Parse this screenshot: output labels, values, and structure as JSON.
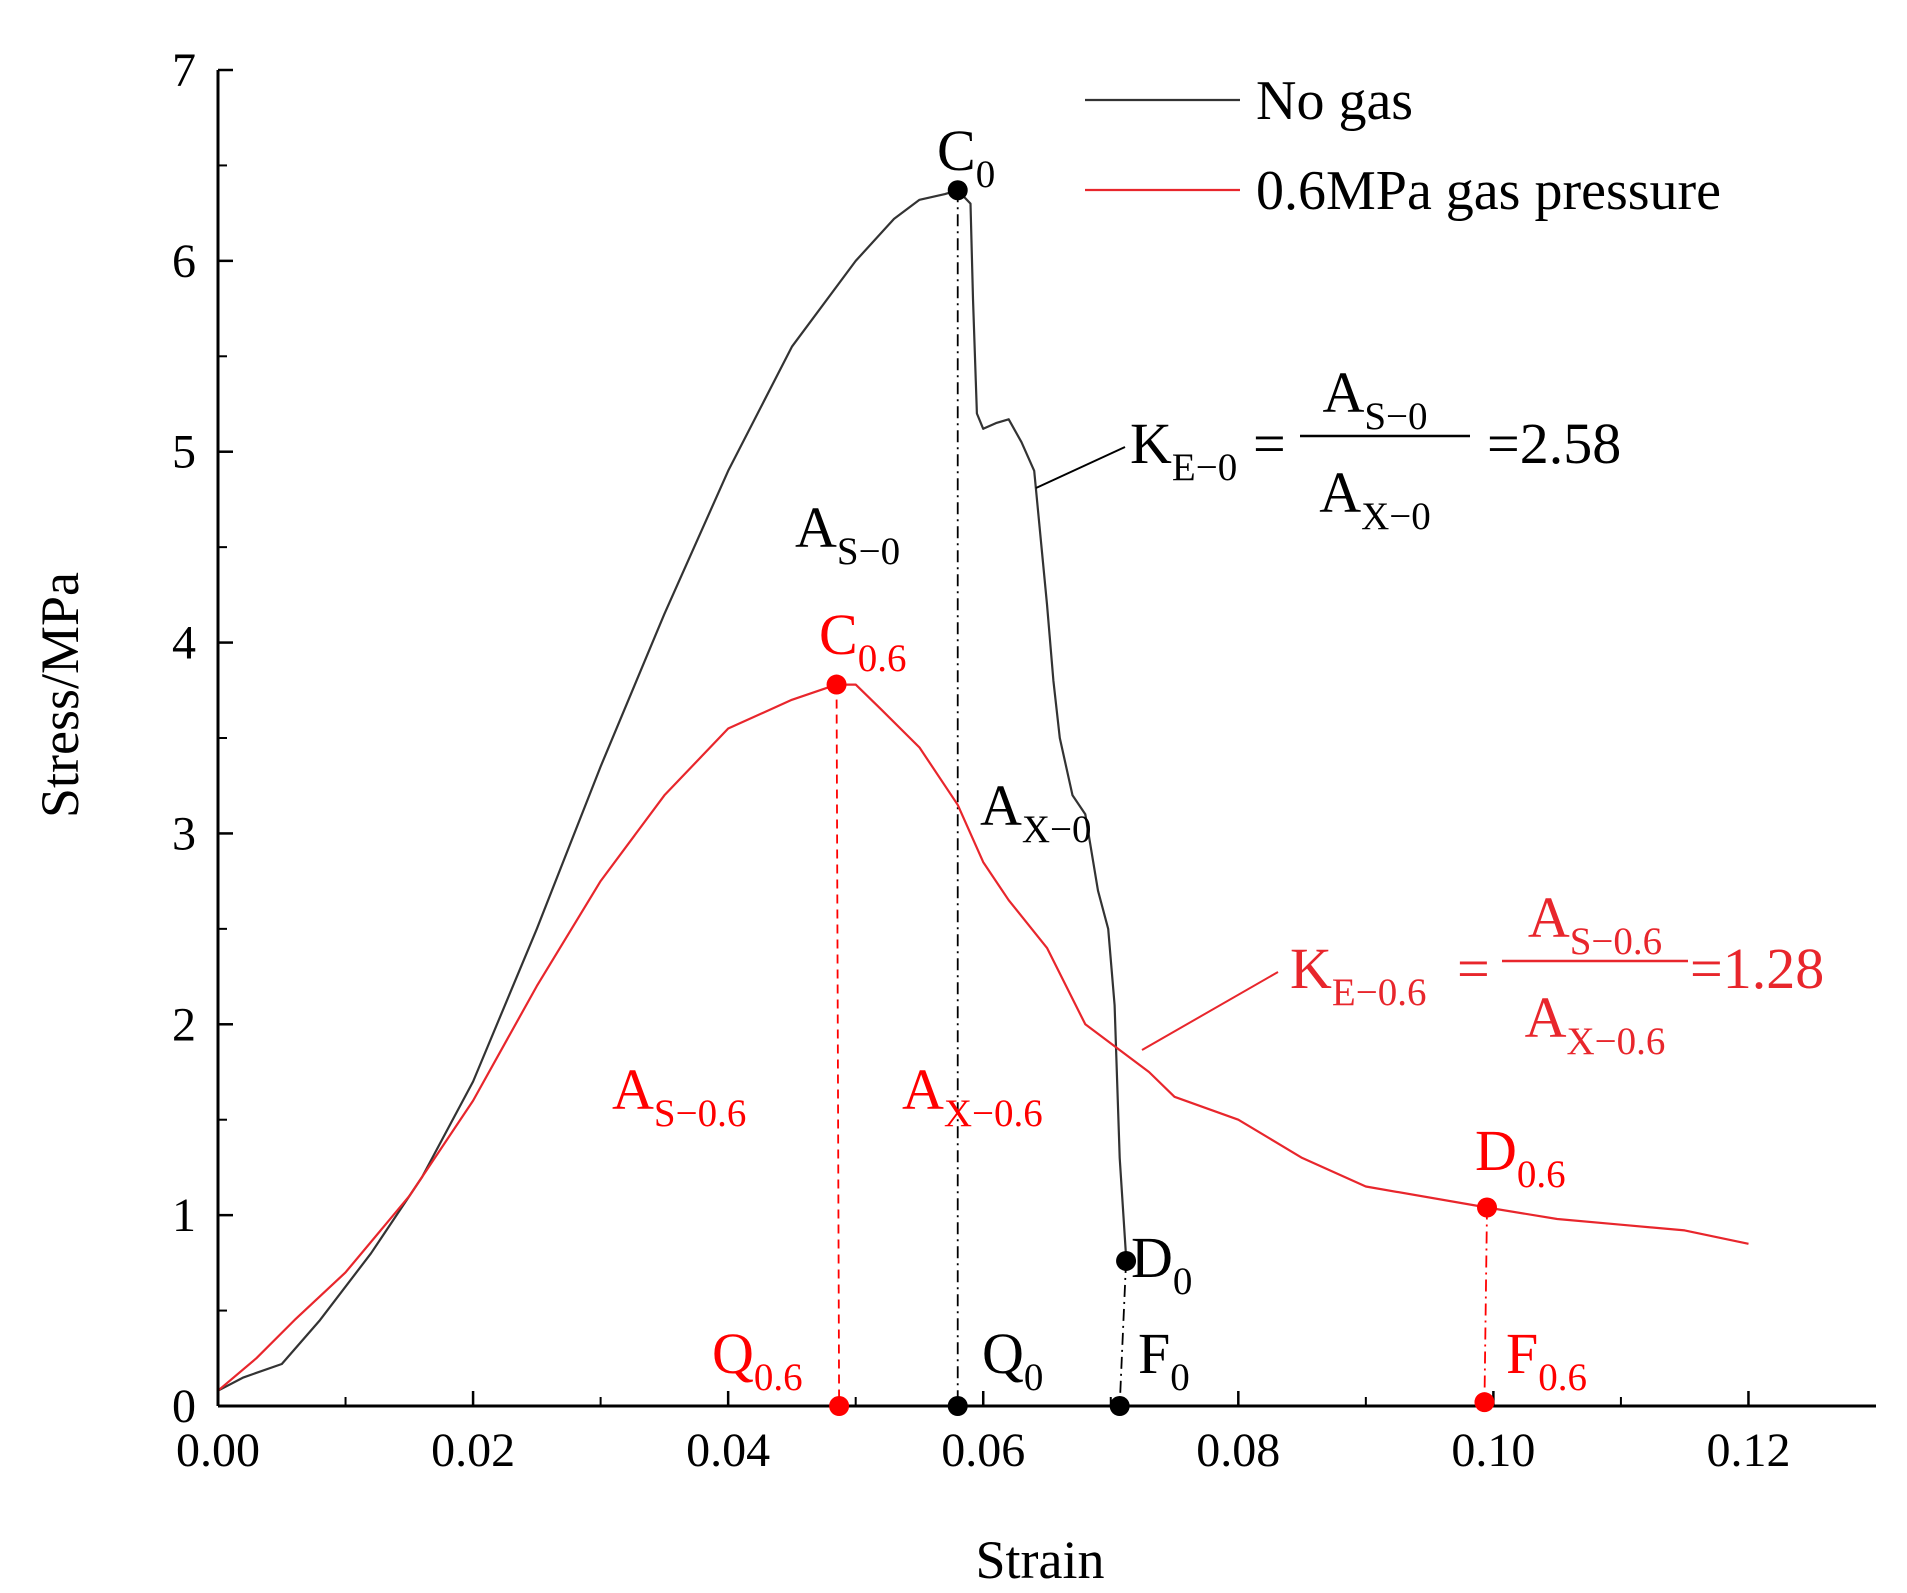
{
  "chart_data": {
    "type": "line",
    "xlabel": "Strain",
    "ylabel": "Stress/MPa",
    "xlim": [
      0,
      0.13
    ],
    "ylim": [
      0,
      7
    ],
    "x_ticks": [
      0,
      0.02,
      0.04,
      0.06,
      0.08,
      0.1,
      0.12
    ],
    "x_tick_labels": [
      "0.00",
      "0.02",
      "0.04",
      "0.06",
      "0.08",
      "0.10",
      "0.12"
    ],
    "y_ticks": [
      0,
      1,
      2,
      3,
      4,
      5,
      6,
      7
    ],
    "y_tick_labels": [
      "0",
      "1",
      "2",
      "3",
      "4",
      "5",
      "6",
      "7"
    ],
    "legend_position": "top-right",
    "series": [
      {
        "name": "No gas",
        "color": "#333333",
        "x": [
          0,
          0.002,
          0.005,
          0.008,
          0.012,
          0.016,
          0.02,
          0.025,
          0.03,
          0.035,
          0.04,
          0.045,
          0.05,
          0.053,
          0.055,
          0.057,
          0.058,
          0.059,
          0.0592,
          0.0595,
          0.06,
          0.061,
          0.062,
          0.063,
          0.064,
          0.065,
          0.0655,
          0.066,
          0.067,
          0.068,
          0.069,
          0.0698,
          0.0703,
          0.0707,
          0.0712
        ],
        "y": [
          0.08,
          0.15,
          0.22,
          0.45,
          0.8,
          1.2,
          1.7,
          2.5,
          3.35,
          4.15,
          4.9,
          5.55,
          6.0,
          6.22,
          6.32,
          6.35,
          6.37,
          6.3,
          5.8,
          5.2,
          5.12,
          5.15,
          5.17,
          5.05,
          4.9,
          4.2,
          3.8,
          3.5,
          3.2,
          3.1,
          2.7,
          2.5,
          2.1,
          1.3,
          0.78
        ]
      },
      {
        "name": "0.6MPa gas pressure",
        "color": "#e8262c",
        "x": [
          0,
          0.003,
          0.006,
          0.01,
          0.015,
          0.02,
          0.025,
          0.03,
          0.035,
          0.04,
          0.045,
          0.0485,
          0.05,
          0.052,
          0.055,
          0.058,
          0.06,
          0.062,
          0.065,
          0.068,
          0.07,
          0.073,
          0.075,
          0.08,
          0.085,
          0.09,
          0.0995,
          0.105,
          0.11,
          0.115,
          0.12
        ],
        "y": [
          0.08,
          0.25,
          0.45,
          0.7,
          1.1,
          1.6,
          2.2,
          2.75,
          3.2,
          3.55,
          3.7,
          3.78,
          3.78,
          3.65,
          3.45,
          3.15,
          2.85,
          2.65,
          2.4,
          2.0,
          1.9,
          1.75,
          1.62,
          1.5,
          1.3,
          1.15,
          1.04,
          0.98,
          0.95,
          0.92,
          0.85
        ]
      }
    ],
    "points": [
      {
        "name": "C0",
        "x": 0.058,
        "y": 6.37,
        "series": "No gas"
      },
      {
        "name": "D0",
        "x": 0.0712,
        "y": 0.76,
        "series": "No gas"
      },
      {
        "name": "Q0",
        "x": 0.058,
        "y": 0,
        "series": "No gas"
      },
      {
        "name": "F0",
        "x": 0.0707,
        "y": 0,
        "series": "No gas"
      },
      {
        "name": "C0.6",
        "x": 0.0485,
        "y": 3.78,
        "series": "0.6MPa gas pressure"
      },
      {
        "name": "Q0.6",
        "x": 0.0487,
        "y": 0,
        "series": "0.6MPa gas pressure"
      },
      {
        "name": "D0.6",
        "x": 0.0995,
        "y": 1.04,
        "series": "0.6MPa gas pressure"
      },
      {
        "name": "F0.6",
        "x": 0.0993,
        "y": 0.02,
        "series": "0.6MPa gas pressure"
      }
    ],
    "annotations": {
      "C0": {
        "main": "C",
        "sub": "0"
      },
      "D0": {
        "main": "D",
        "sub": "0"
      },
      "Q0": {
        "main": "Q",
        "sub": "0"
      },
      "F0": {
        "main": "F",
        "sub": "0"
      },
      "AS0": {
        "main": "A",
        "sub": "S−0"
      },
      "AX0": {
        "main": "A",
        "sub": "X−0"
      },
      "C06": {
        "main": "C",
        "sub": "0.6"
      },
      "D06": {
        "main": "D",
        "sub": "0.6"
      },
      "Q06": {
        "main": "Q",
        "sub": "0.6"
      },
      "F06": {
        "main": "F",
        "sub": "0.6"
      },
      "AS06": {
        "main": "A",
        "sub": "S−0.6"
      },
      "AX06": {
        "main": "A",
        "sub": "X−0.6"
      }
    },
    "formulas": [
      {
        "name": "ke0",
        "lhs_main": "K",
        "lhs_sub": "E−0",
        "eq": "=",
        "num_main": "A",
        "num_sub": "S−0",
        "den_main": "A",
        "den_sub": "X−0",
        "result": "=2.58",
        "value": 2.58,
        "color": "#000000"
      },
      {
        "name": "ke06",
        "lhs_main": "K",
        "lhs_sub": "E−0.6",
        "eq": "=",
        "num_main": "A",
        "num_sub": "S−0.6",
        "den_main": "A",
        "den_sub": "X−0.6",
        "result": "=1.28",
        "value": 1.28,
        "color": "#e8262c"
      }
    ]
  }
}
